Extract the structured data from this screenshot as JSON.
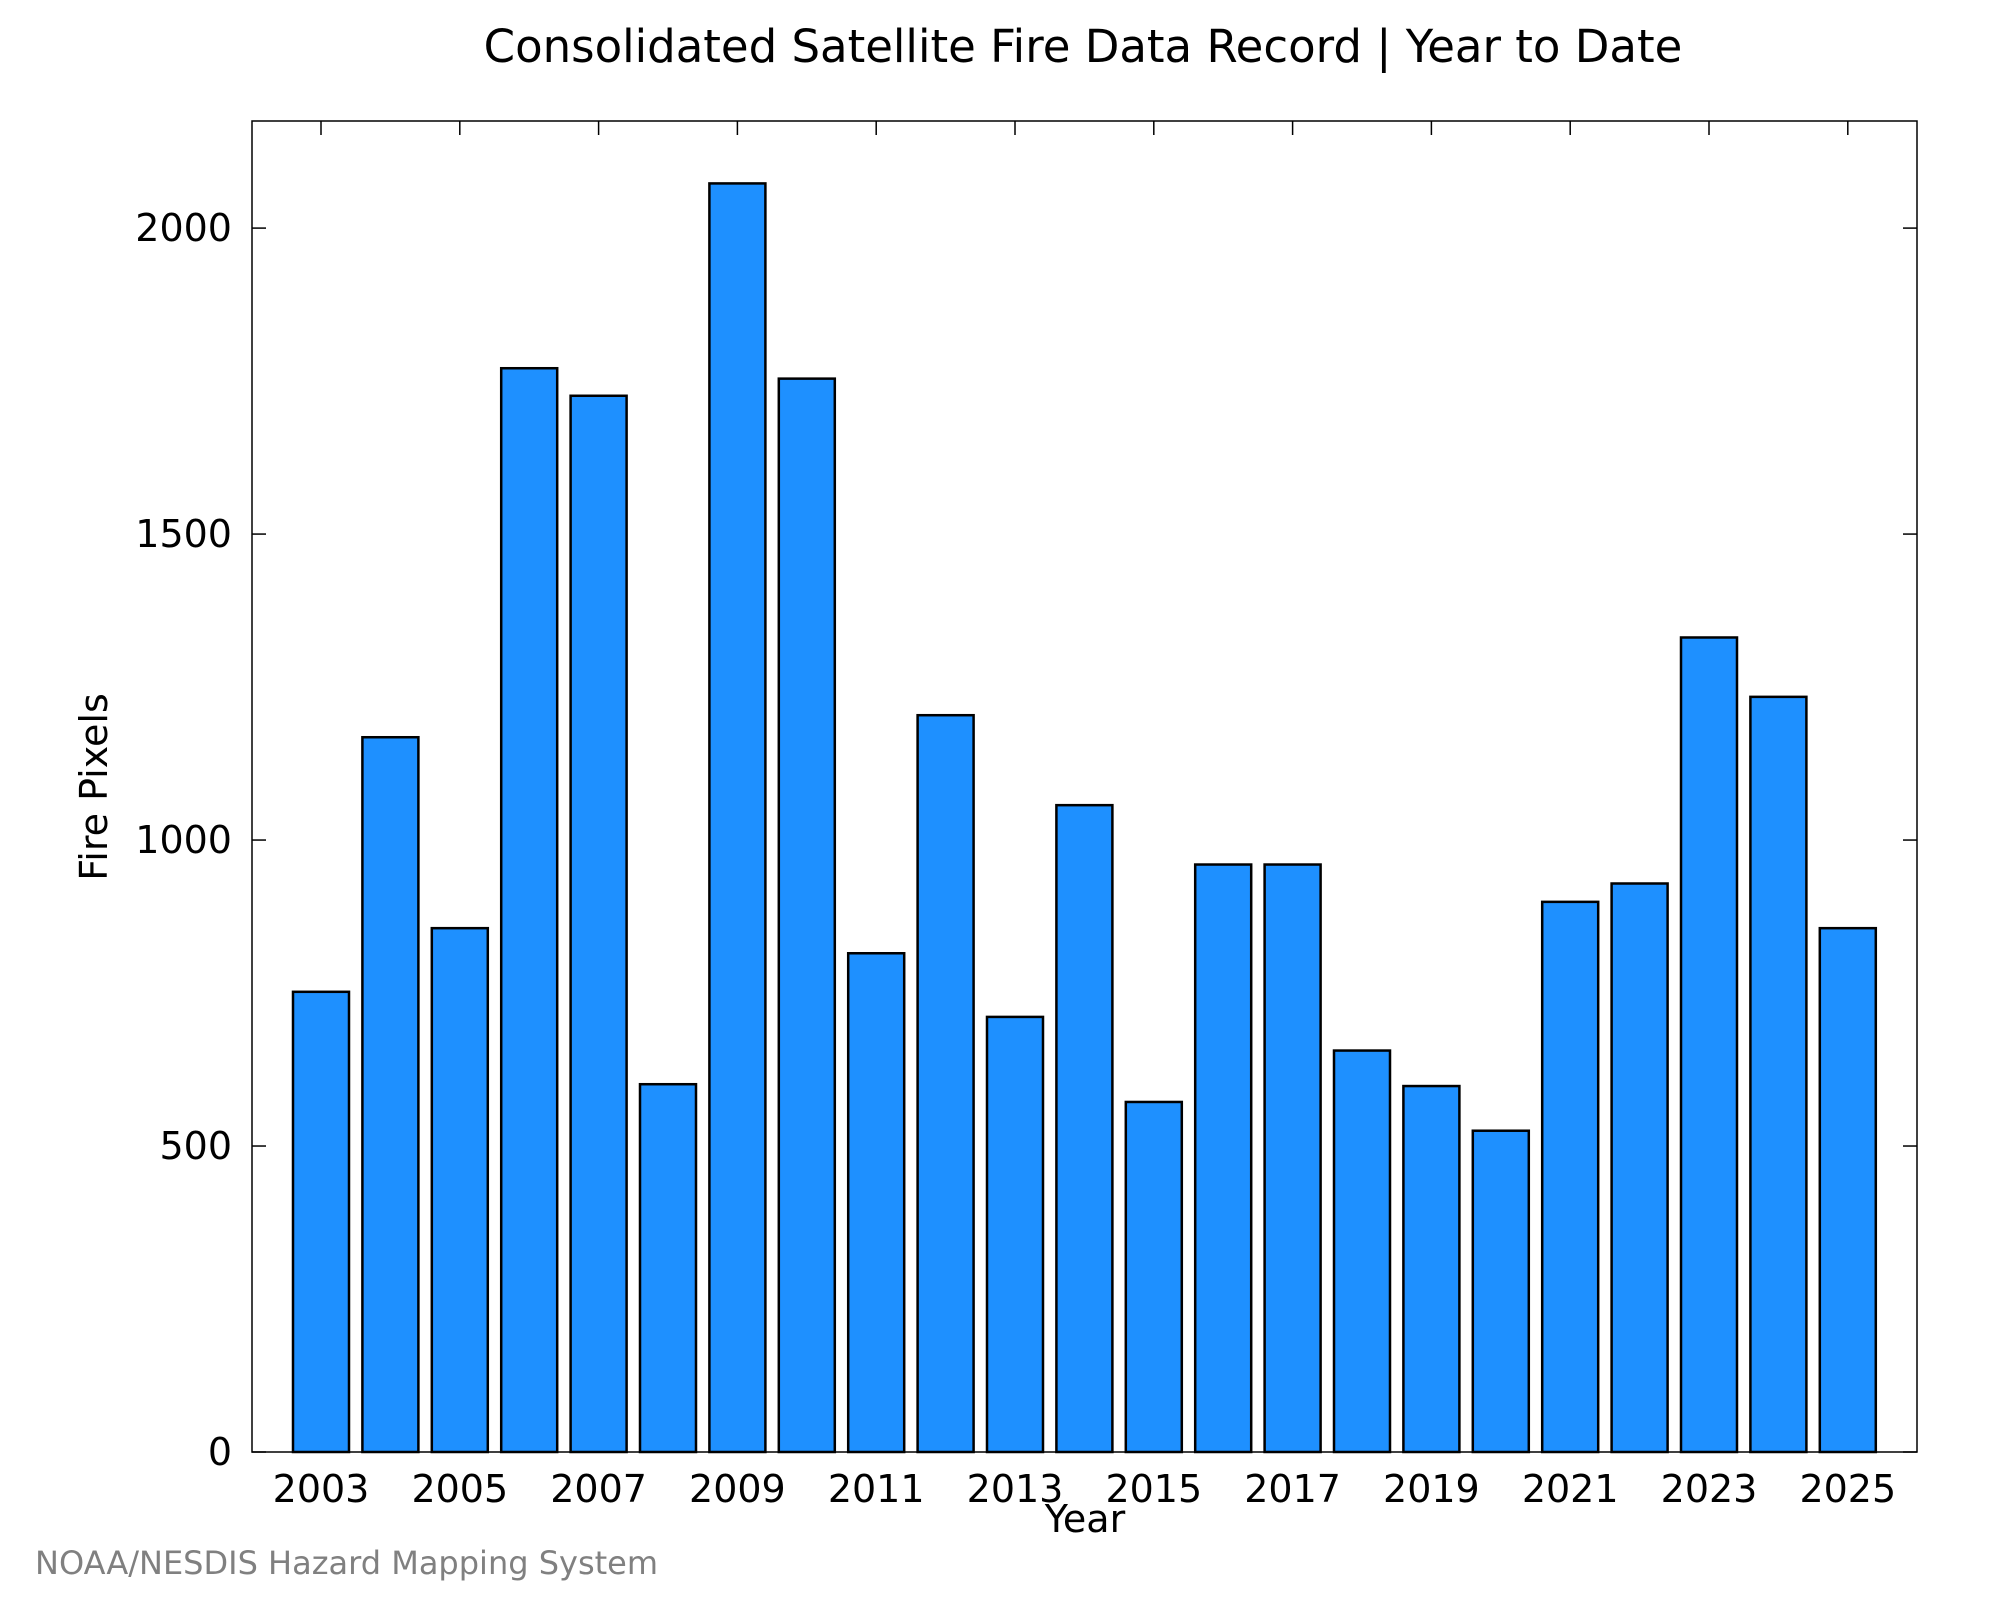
{
  "chart_data": {
    "type": "bar",
    "title": "Consolidated Satellite Fire Data Record | Year to Date",
    "xlabel": "Year",
    "ylabel": "Fire Pixels",
    "categories": [
      "2003",
      "2004",
      "2005",
      "2006",
      "2007",
      "2008",
      "2009",
      "2010",
      "2011",
      "2012",
      "2013",
      "2014",
      "2015",
      "2016",
      "2017",
      "2018",
      "2019",
      "2020",
      "2021",
      "2022",
      "2023",
      "2024",
      "2025"
    ],
    "values": [
      752,
      1168,
      856,
      1771,
      1726,
      601,
      2073,
      1754,
      815,
      1204,
      711,
      1057,
      572,
      960,
      960,
      656,
      598,
      525,
      899,
      929,
      1331,
      1234,
      856
    ],
    "x_tick_labels": [
      "2003",
      "2005",
      "2007",
      "2009",
      "2011",
      "2013",
      "2015",
      "2017",
      "2019",
      "2021",
      "2023",
      "2025"
    ],
    "y_ticks": [
      0,
      500,
      1000,
      1500,
      2000
    ],
    "y_tick_labels": [
      "0",
      "500",
      "1000",
      "1500",
      "2000"
    ],
    "ylim": [
      0,
      2175
    ],
    "grid": false,
    "legend": "none"
  },
  "credit": {
    "text": "NOAA/NESDIS Hazard Mapping System"
  },
  "colors": {
    "bar_fill": "#1E90FF",
    "bar_stroke": "#000000",
    "credit_text": "#808080"
  }
}
